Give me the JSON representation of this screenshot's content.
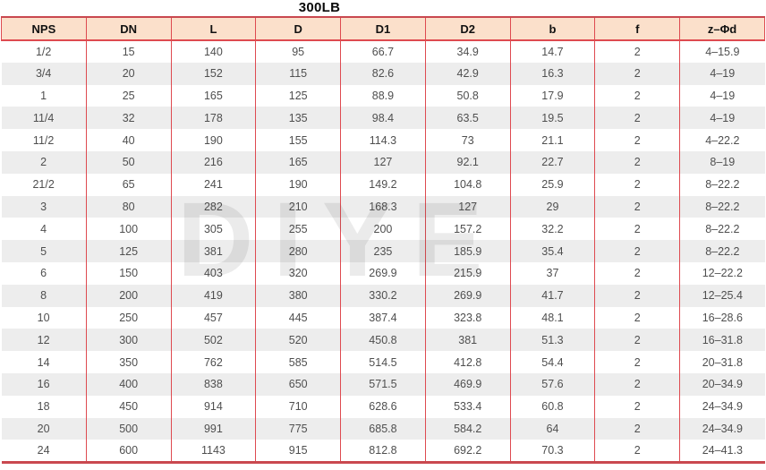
{
  "title": "300LB",
  "watermark": "DIYE",
  "colors": {
    "header_bg": "#fbe0cb",
    "border_red": "#de4a50",
    "border_red_dark": "#c9484f",
    "stripe_gray": "#ededed",
    "cell_text": "#4f4f4f"
  },
  "table": {
    "columns": [
      "NPS",
      "DN",
      "L",
      "D",
      "D1",
      "D2",
      "b",
      "f",
      "z–Φd"
    ],
    "rows": [
      [
        "1/2",
        "15",
        "140",
        "95",
        "66.7",
        "34.9",
        "14.7",
        "2",
        "4–15.9"
      ],
      [
        "3/4",
        "20",
        "152",
        "115",
        "82.6",
        "42.9",
        "16.3",
        "2",
        "4–19"
      ],
      [
        "1",
        "25",
        "165",
        "125",
        "88.9",
        "50.8",
        "17.9",
        "2",
        "4–19"
      ],
      [
        "11/4",
        "32",
        "178",
        "135",
        "98.4",
        "63.5",
        "19.5",
        "2",
        "4–19"
      ],
      [
        "11/2",
        "40",
        "190",
        "155",
        "114.3",
        "73",
        "21.1",
        "2",
        "4–22.2"
      ],
      [
        "2",
        "50",
        "216",
        "165",
        "127",
        "92.1",
        "22.7",
        "2",
        "8–19"
      ],
      [
        "21/2",
        "65",
        "241",
        "190",
        "149.2",
        "104.8",
        "25.9",
        "2",
        "8–22.2"
      ],
      [
        "3",
        "80",
        "282",
        "210",
        "168.3",
        "127",
        "29",
        "2",
        "8–22.2"
      ],
      [
        "4",
        "100",
        "305",
        "255",
        "200",
        "157.2",
        "32.2",
        "2",
        "8–22.2"
      ],
      [
        "5",
        "125",
        "381",
        "280",
        "235",
        "185.9",
        "35.4",
        "2",
        "8–22.2"
      ],
      [
        "6",
        "150",
        "403",
        "320",
        "269.9",
        "215.9",
        "37",
        "2",
        "12–22.2"
      ],
      [
        "8",
        "200",
        "419",
        "380",
        "330.2",
        "269.9",
        "41.7",
        "2",
        "12–25.4"
      ],
      [
        "10",
        "250",
        "457",
        "445",
        "387.4",
        "323.8",
        "48.1",
        "2",
        "16–28.6"
      ],
      [
        "12",
        "300",
        "502",
        "520",
        "450.8",
        "381",
        "51.3",
        "2",
        "16–31.8"
      ],
      [
        "14",
        "350",
        "762",
        "585",
        "514.5",
        "412.8",
        "54.4",
        "2",
        "20–31.8"
      ],
      [
        "16",
        "400",
        "838",
        "650",
        "571.5",
        "469.9",
        "57.6",
        "2",
        "20–34.9"
      ],
      [
        "18",
        "450",
        "914",
        "710",
        "628.6",
        "533.4",
        "60.8",
        "2",
        "24–34.9"
      ],
      [
        "20",
        "500",
        "991",
        "775",
        "685.8",
        "584.2",
        "64",
        "2",
        "24–34.9"
      ],
      [
        "24",
        "600",
        "1143",
        "915",
        "812.8",
        "692.2",
        "70.3",
        "2",
        "24–41.3"
      ]
    ]
  }
}
